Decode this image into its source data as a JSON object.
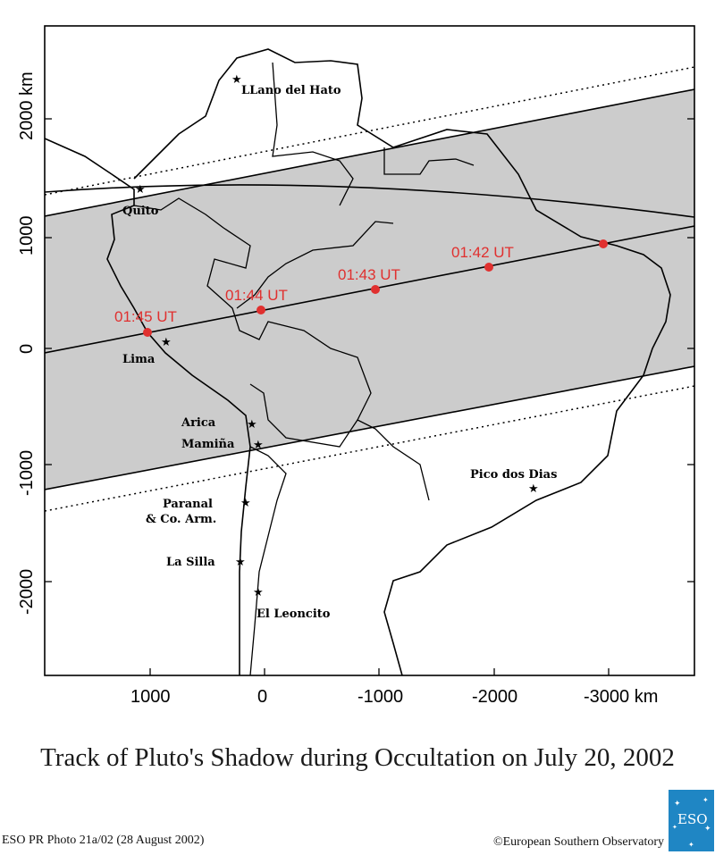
{
  "axes": {
    "y_unit": "km",
    "y_ticks": [
      "2000 km",
      "1000",
      "0",
      "-1000",
      "-2000"
    ],
    "x_ticks": [
      "1000",
      "0",
      "-1000",
      "-2000",
      "-3000 km"
    ]
  },
  "times": [
    "01:42 UT",
    "01:43 UT",
    "01:44 UT",
    "01:45 UT"
  ],
  "sites": {
    "llano": "LLano del Hato",
    "quito": "Quito",
    "lima": "Lima",
    "arica": "Arica",
    "mamina": "Mamiña",
    "paranal_1": "Paranal",
    "paranal_2": "& Co. Arm.",
    "lasilla": "La Silla",
    "leoncito": "El Leoncito",
    "pico": "Pico dos Dias"
  },
  "colors": {
    "shadow_band": "#cccccc",
    "track_points": "#e0302f",
    "logo": "#1f86c4"
  },
  "caption": "Track of Pluto's Shadow during Occultation on July 20, 2002",
  "credit_left": "ESO PR Photo 21a/02 (28 August 2002)",
  "credit_right": "©European Southern Observatory",
  "logo_text": "ESO"
}
